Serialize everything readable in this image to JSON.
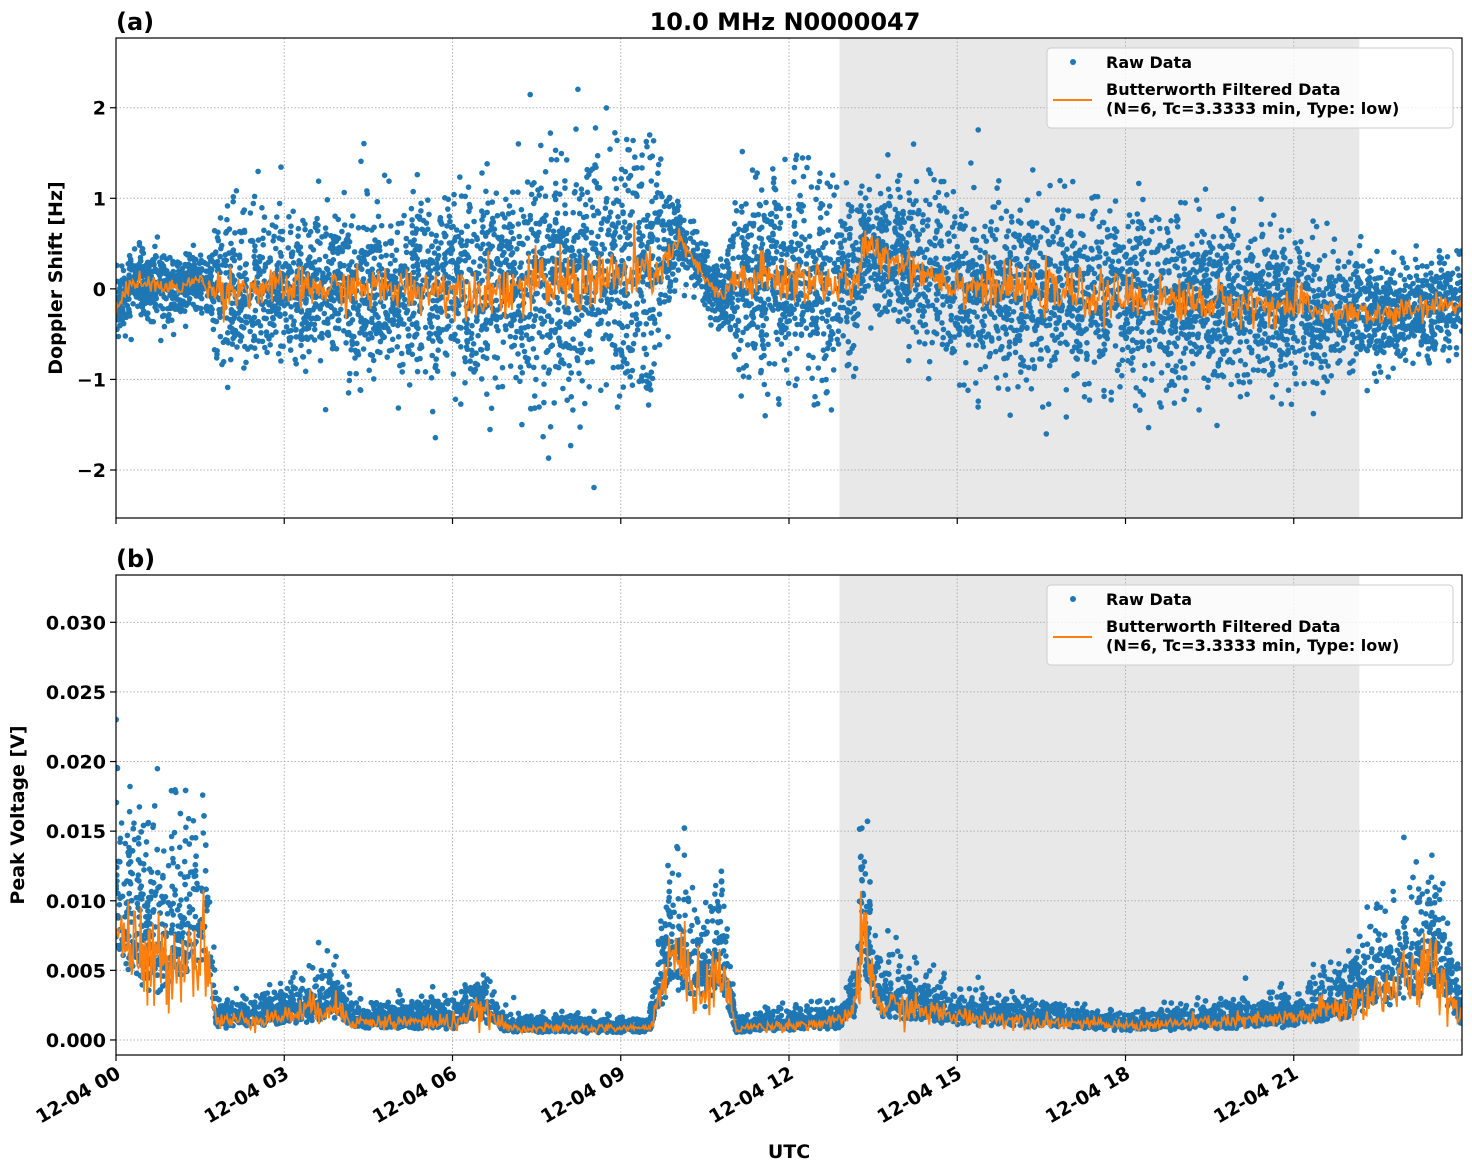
{
  "chart_data": [
    {
      "type": "scatter",
      "panel_label": "(a)",
      "title": "10.0 MHz N0000047",
      "xlabel": "",
      "ylabel": "Doppler Shift [Hz]",
      "xlim_hours_utc": [
        0,
        24
      ],
      "ylim": [
        -2.53,
        2.77
      ],
      "yticks": [
        "−2",
        "−1",
        "0",
        "1",
        "2"
      ],
      "ytick_values": [
        -2,
        -1,
        0,
        1,
        2
      ],
      "grid": true,
      "legend_placement": "upper right",
      "shaded_interval_hours": [
        12.9,
        22.17
      ],
      "series": [
        {
          "name": "Raw Data",
          "style": "points",
          "color": "#1f77b4"
        },
        {
          "name": "Butterworth Filtered Data\n(N=6, Tc=3.3333 min, Type: low)",
          "style": "line",
          "color": "#ff7f0e"
        }
      ],
      "legend": [
        "Raw Data",
        "Butterworth Filtered Data",
        "(N=6, Tc=3.3333 min, Type: low)"
      ],
      "envelope": {
        "hours": [
          0,
          0.3,
          1,
          1.5,
          1.7,
          1.8,
          3,
          4.5,
          6,
          7,
          8.5,
          9.5,
          9.8,
          10.05,
          10.5,
          10.8,
          10.95,
          11.05,
          12.5,
          13.2,
          13.3,
          14,
          15,
          18,
          21,
          22.5,
          24
        ],
        "filtered_mean": [
          -0.25,
          0.1,
          0.0,
          0.1,
          0.0,
          0.0,
          0.0,
          0.0,
          0.0,
          0.0,
          0.1,
          0.15,
          0.3,
          0.55,
          0.1,
          -0.1,
          0.0,
          0.1,
          0.1,
          0.0,
          0.45,
          0.3,
          0.05,
          -0.1,
          -0.2,
          -0.3,
          -0.15
        ],
        "raw_spread": [
          0.4,
          0.4,
          0.4,
          0.4,
          0.5,
          1.0,
          0.9,
          1.0,
          1.1,
          1.4,
          1.5,
          1.5,
          0.8,
          0.4,
          0.4,
          0.4,
          0.6,
          1.2,
          1.2,
          1.0,
          0.8,
          0.8,
          1.0,
          1.1,
          0.9,
          0.6,
          0.6
        ]
      }
    },
    {
      "type": "scatter",
      "panel_label": "(b)",
      "xlabel": "UTC",
      "ylabel": "Peak Voltage [V]",
      "xlim_hours_utc": [
        0,
        24
      ],
      "ylim": [
        -0.00108,
        0.0334
      ],
      "yticks": [
        "0.000",
        "0.005",
        "0.010",
        "0.015",
        "0.020",
        "0.025",
        "0.030"
      ],
      "ytick_values": [
        0,
        0.005,
        0.01,
        0.015,
        0.02,
        0.025,
        0.03
      ],
      "xticks": [
        "12-04 00",
        "12-04 03",
        "12-04 06",
        "12-04 09",
        "12-04 12",
        "12-04 15",
        "12-04 18",
        "12-04 21"
      ],
      "xtick_hours": [
        0,
        3,
        6,
        9,
        12,
        15,
        18,
        21
      ],
      "grid": true,
      "legend_placement": "upper right",
      "shaded_interval_hours": [
        12.9,
        22.17
      ],
      "series": [
        {
          "name": "Raw Data",
          "style": "points",
          "color": "#1f77b4"
        },
        {
          "name": "Butterworth Filtered Data\n(N=6, Tc=3.3333 min, Type: low)",
          "style": "line",
          "color": "#ff7f0e"
        }
      ],
      "legend": [
        "Raw Data",
        "Butterworth Filtered Data",
        "(N=6, Tc=3.3333 min, Type: low)"
      ],
      "envelope": {
        "hours": [
          0,
          0.5,
          1,
          1.6,
          1.72,
          1.8,
          3,
          3.8,
          4.3,
          6,
          6.5,
          7,
          9.5,
          9.9,
          10.1,
          10.5,
          10.8,
          10.95,
          11.05,
          12.9,
          13.2,
          13.3,
          13.6,
          15,
          18,
          21,
          22,
          23.5,
          24
        ],
        "filtered_mean": [
          0.01,
          0.006,
          0.007,
          0.008,
          0.004,
          0.0015,
          0.002,
          0.003,
          0.0015,
          0.0015,
          0.0025,
          0.001,
          0.001,
          0.007,
          0.006,
          0.004,
          0.006,
          0.003,
          0.001,
          0.0015,
          0.003,
          0.009,
          0.003,
          0.002,
          0.0012,
          0.0018,
          0.003,
          0.006,
          0.002
        ],
        "raw_spread": [
          0.013,
          0.01,
          0.01,
          0.01,
          0.005,
          0.002,
          0.002,
          0.004,
          0.0015,
          0.002,
          0.003,
          0.001,
          0.0008,
          0.008,
          0.008,
          0.006,
          0.008,
          0.004,
          0.001,
          0.0015,
          0.003,
          0.012,
          0.004,
          0.002,
          0.001,
          0.002,
          0.004,
          0.008,
          0.003
        ]
      }
    }
  ]
}
